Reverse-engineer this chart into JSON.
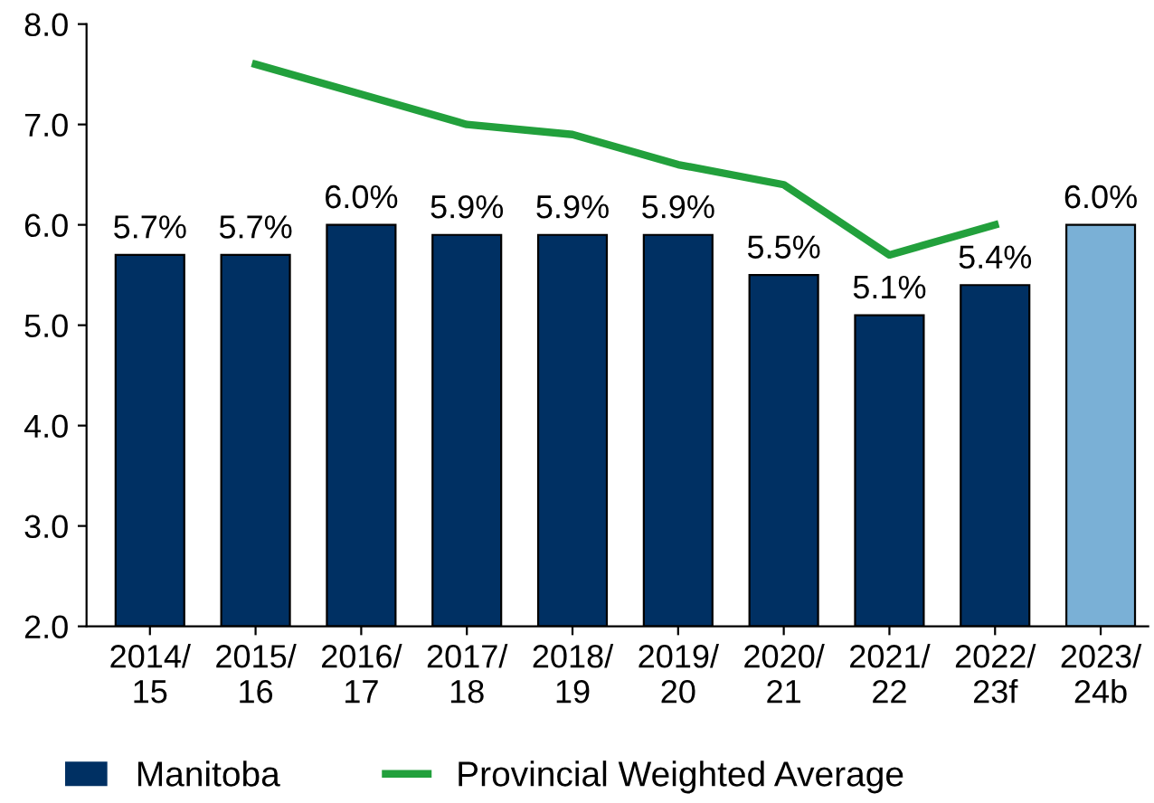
{
  "chart_data": {
    "type": "bar",
    "categories": [
      "2014/\n15",
      "2015/\n16",
      "2016/\n17",
      "2017/\n18",
      "2018/\n19",
      "2019/\n20",
      "2020/\n21",
      "2021/\n22",
      "2022/\n23f",
      "2023/\n24b"
    ],
    "series": [
      {
        "name": "Manitoba",
        "color": "#003063",
        "colors": [
          "#003063",
          "#003063",
          "#003063",
          "#003063",
          "#003063",
          "#003063",
          "#003063",
          "#003063",
          "#003063",
          "#7ab0d6"
        ],
        "values": [
          5.7,
          5.7,
          6.0,
          5.9,
          5.9,
          5.9,
          5.5,
          5.1,
          5.4,
          6.0
        ],
        "value_labels": [
          "5.7%",
          "5.7%",
          "6.0%",
          "5.9%",
          "5.9%",
          "5.9%",
          "5.5%",
          "5.1%",
          "5.4%",
          "6.0%"
        ]
      },
      {
        "name": "Provincial Weighted Average",
        "type": "line",
        "color": "#22a03c",
        "values": [
          null,
          7.6,
          7.3,
          7.0,
          6.9,
          6.6,
          6.4,
          5.7,
          6.0,
          null
        ]
      }
    ],
    "ylim": [
      2.0,
      8.0
    ],
    "yticks": [
      {
        "value": 2,
        "label": "2.0"
      },
      {
        "value": 3,
        "label": "3.0"
      },
      {
        "value": 4,
        "label": "4.0"
      },
      {
        "value": 5,
        "label": "5.0"
      },
      {
        "value": 6,
        "label": "6.0"
      },
      {
        "value": 7,
        "label": "7.0"
      },
      {
        "value": 8,
        "label": "8.0"
      }
    ],
    "grid": false,
    "legend": "bottom left",
    "marker": "none",
    "line_style": "solid"
  }
}
